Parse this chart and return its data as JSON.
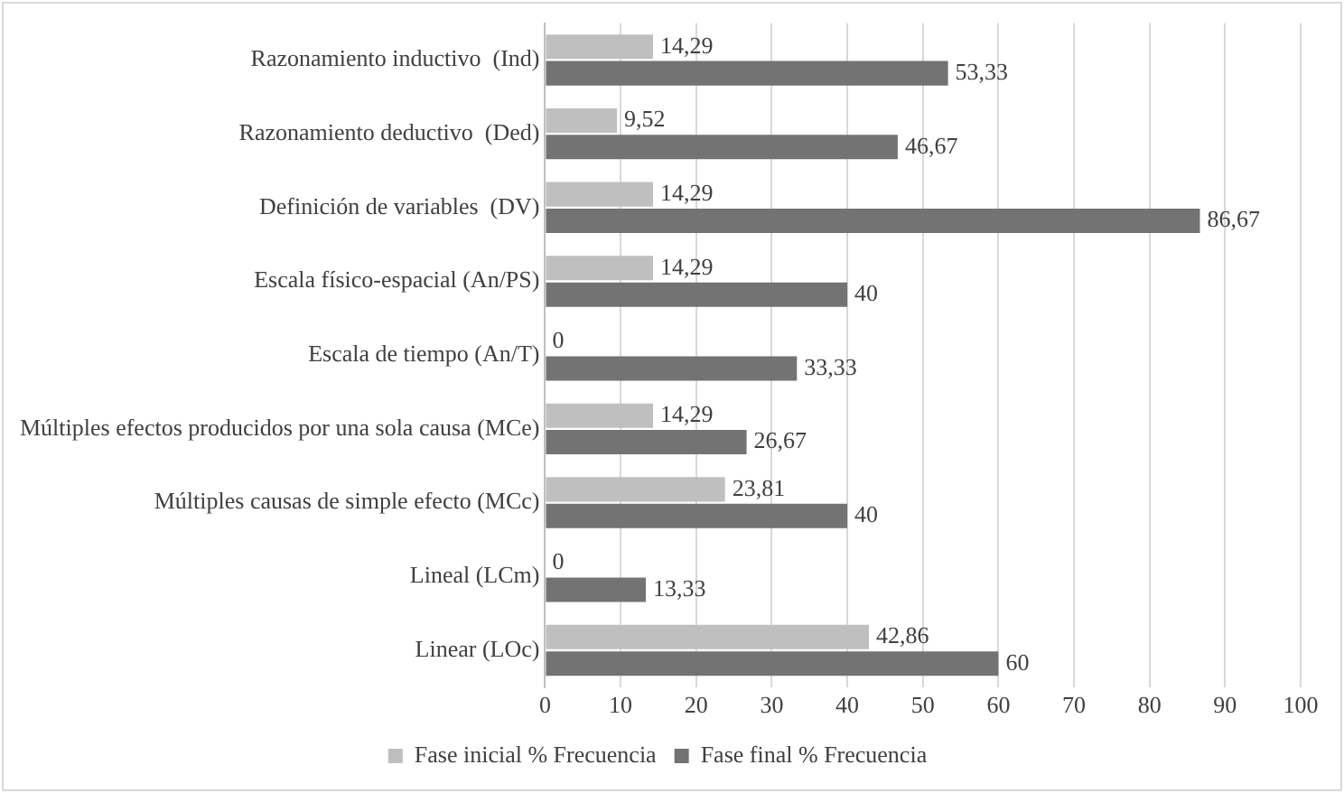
{
  "chart_data": {
    "type": "bar",
    "orientation": "horizontal",
    "categories": [
      "Razonamiento inductivo  (Ind)",
      "Razonamiento deductivo  (Ded)",
      "Definición de variables  (DV)",
      "Escala físico-espacial (An/PS)",
      "Escala de tiempo (An/T)",
      "Múltiples efectos producidos por una sola causa (MCe)",
      "Múltiples causas de simple efecto (MCc)",
      "Lineal (LCm)",
      "Linear (LOc)"
    ],
    "series": [
      {
        "name": "Fase inicial % Frecuencia",
        "color": "#bfbfbf",
        "values": [
          14.29,
          9.52,
          14.29,
          14.29,
          0,
          14.29,
          23.81,
          0,
          42.86
        ],
        "value_labels": [
          "14,29",
          "9,52",
          "14,29",
          "14,29",
          "0",
          "14,29",
          "23,81",
          "0",
          "42,86"
        ]
      },
      {
        "name": "Fase final % Frecuencia",
        "color": "#737373",
        "values": [
          53.33,
          46.67,
          86.67,
          40,
          33.33,
          26.67,
          40,
          13.33,
          60
        ],
        "value_labels": [
          "53,33",
          "46,67",
          "86,67",
          "40",
          "33,33",
          "26,67",
          "40",
          "13,33",
          "60"
        ]
      }
    ],
    "xlim": [
      0,
      100
    ],
    "xticks": [
      0,
      10,
      20,
      30,
      40,
      50,
      60,
      70,
      80,
      90,
      100
    ],
    "grid": "x",
    "legend": "bottom"
  }
}
